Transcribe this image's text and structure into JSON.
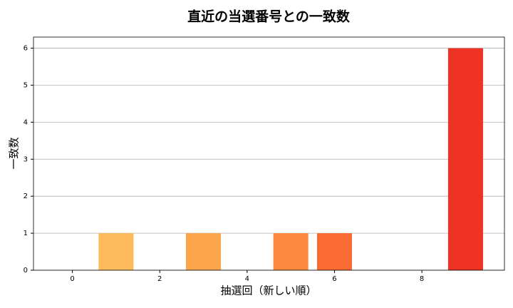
{
  "chart_data": {
    "type": "bar",
    "title": "直近の当選番号との一致数",
    "x_label": "抽選回（新しい順）",
    "y_label": "一致数",
    "x": [
      0,
      1,
      2,
      3,
      4,
      5,
      6,
      7,
      8,
      9
    ],
    "values": [
      0,
      1,
      0,
      1,
      0,
      1,
      1,
      0,
      0,
      6
    ],
    "colors": [
      "#fed16c",
      "#fdbb5b",
      "#fdb153",
      "#fca54a",
      "#fc983f",
      "#fc8a3e",
      "#f96b33",
      "#f45530",
      "#f1432a",
      "#ee3224"
    ],
    "xlim": [
      -0.89,
      9.89
    ],
    "xticks": [
      0,
      2,
      4,
      6,
      8
    ],
    "ylim": [
      0,
      6.3
    ],
    "yticks": [
      0,
      1,
      2,
      3,
      4,
      5,
      6
    ],
    "grid": true
  }
}
